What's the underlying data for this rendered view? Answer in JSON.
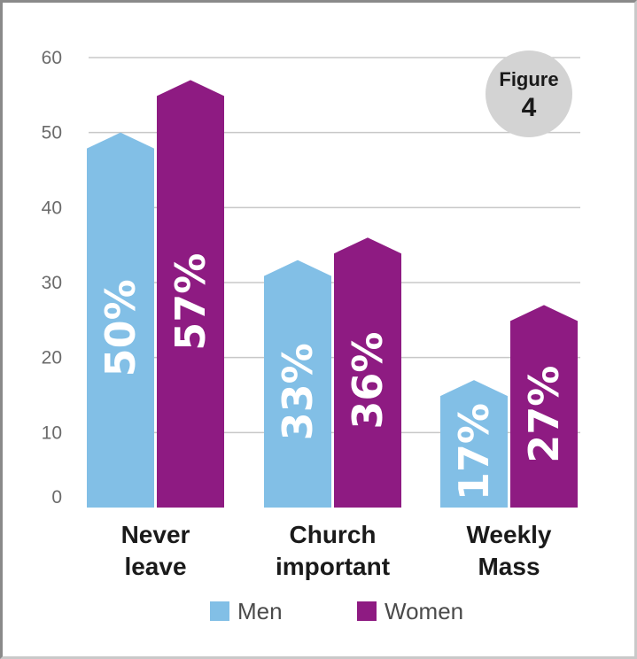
{
  "figure_badge": {
    "label": "Figure",
    "number": "4"
  },
  "chart_data": {
    "type": "bar",
    "categories": [
      [
        "Never",
        "leave"
      ],
      [
        "Church",
        "important"
      ],
      [
        "Weekly",
        "Mass"
      ]
    ],
    "series": [
      {
        "name": "Men",
        "values": [
          50,
          33,
          17
        ],
        "labels": [
          "50%",
          "33%",
          "17%"
        ],
        "color": "#82bfe6"
      },
      {
        "name": "Women",
        "values": [
          57,
          36,
          27
        ],
        "labels": [
          "57%",
          "36%",
          "27%"
        ],
        "color": "#8e1b82"
      }
    ],
    "ylim": [
      0,
      60
    ],
    "yticks": [
      0,
      10,
      20,
      30,
      40,
      50,
      60
    ],
    "grid": true,
    "legend_position": "bottom"
  }
}
